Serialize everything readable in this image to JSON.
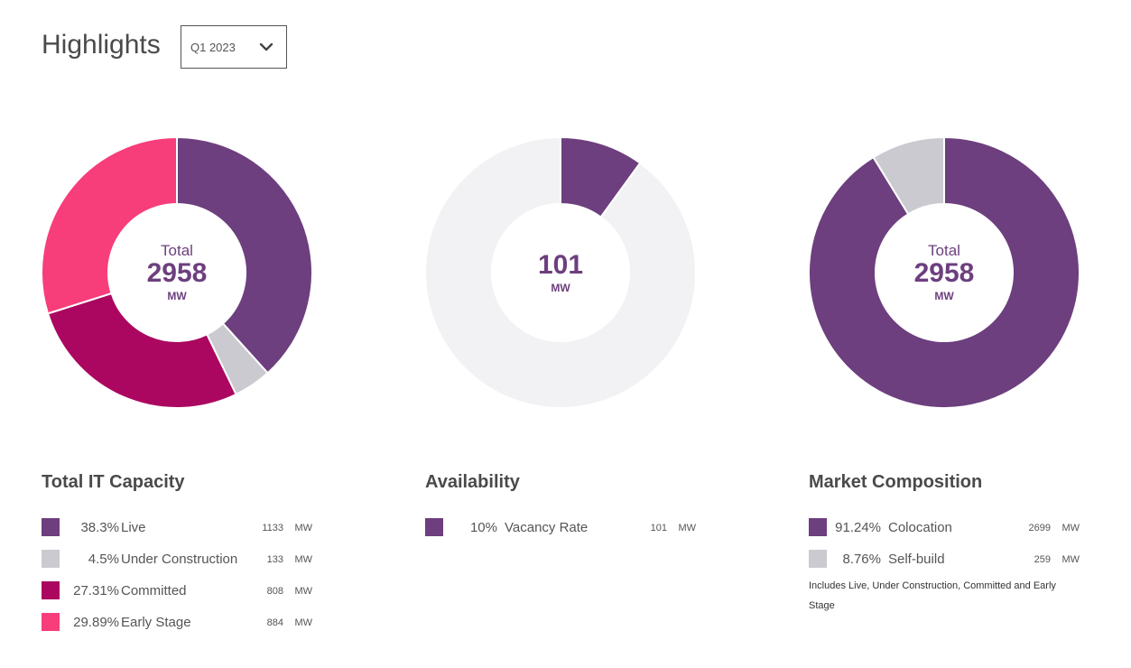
{
  "header": {
    "title": "Highlights",
    "period": "Q1 2023"
  },
  "colors": {
    "live": "#6d3f7e",
    "under_construction": "#cbcad0",
    "committed": "#ab0760",
    "early_stage": "#f73d7a",
    "rest": "#f2f2f4",
    "center_text": "#6d3f7e"
  },
  "charts": {
    "capacity": {
      "center_label": "Total",
      "center_value": "2958",
      "center_unit": "MW"
    },
    "availability": {
      "center_label": "",
      "center_value": "101",
      "center_unit": "MW"
    },
    "composition": {
      "center_label": "Total",
      "center_value": "2958",
      "center_unit": "MW"
    }
  },
  "sections": {
    "capacity": {
      "title": "Total IT Capacity",
      "items": [
        {
          "pct": "38.3%",
          "label": "Live",
          "mw": "1133",
          "unit": "MW",
          "color": "#6d3f7e"
        },
        {
          "pct": "4.5%",
          "label": "Under Construction",
          "mw": "133",
          "unit": "MW",
          "color": "#cbcad0"
        },
        {
          "pct": "27.31%",
          "label": "Committed",
          "mw": "808",
          "unit": "MW",
          "color": "#ab0760"
        },
        {
          "pct": "29.89%",
          "label": "Early Stage",
          "mw": "884",
          "unit": "MW",
          "color": "#f73d7a"
        }
      ]
    },
    "availability": {
      "title": "Availability",
      "items": [
        {
          "pct": "10%",
          "label": "Vacancy Rate",
          "mw": "101",
          "unit": "MW",
          "color": "#6d3f7e"
        }
      ]
    },
    "composition": {
      "title": "Market Composition",
      "items": [
        {
          "pct": "91.24%",
          "label": "Colocation",
          "mw": "2699",
          "unit": "MW",
          "color": "#6d3f7e"
        },
        {
          "pct": "8.76%",
          "label": "Self-build",
          "mw": "259",
          "unit": "MW",
          "color": "#cbcad0"
        }
      ],
      "note": "Includes Live, Under Construction, Committed and Early Stage"
    }
  },
  "chart_data": [
    {
      "type": "pie",
      "title": "Total IT Capacity",
      "categories": [
        "Live",
        "Under Construction",
        "Committed",
        "Early Stage"
      ],
      "values": [
        38.3,
        4.5,
        27.31,
        29.89
      ],
      "mw": [
        1133,
        133,
        808,
        884
      ],
      "colors": [
        "#6d3f7e",
        "#cbcad0",
        "#ab0760",
        "#f73d7a"
      ]
    },
    {
      "type": "pie",
      "title": "Availability",
      "categories": [
        "Vacancy Rate",
        ""
      ],
      "values": [
        10,
        90
      ],
      "mw": [
        101
      ],
      "colors": [
        "#6d3f7e",
        "#f2f2f4"
      ]
    },
    {
      "type": "pie",
      "title": "Market Composition",
      "categories": [
        "Colocation",
        "Self-build"
      ],
      "values": [
        91.24,
        8.76
      ],
      "mw": [
        2699,
        259
      ],
      "colors": [
        "#6d3f7e",
        "#cbcad0"
      ]
    }
  ]
}
